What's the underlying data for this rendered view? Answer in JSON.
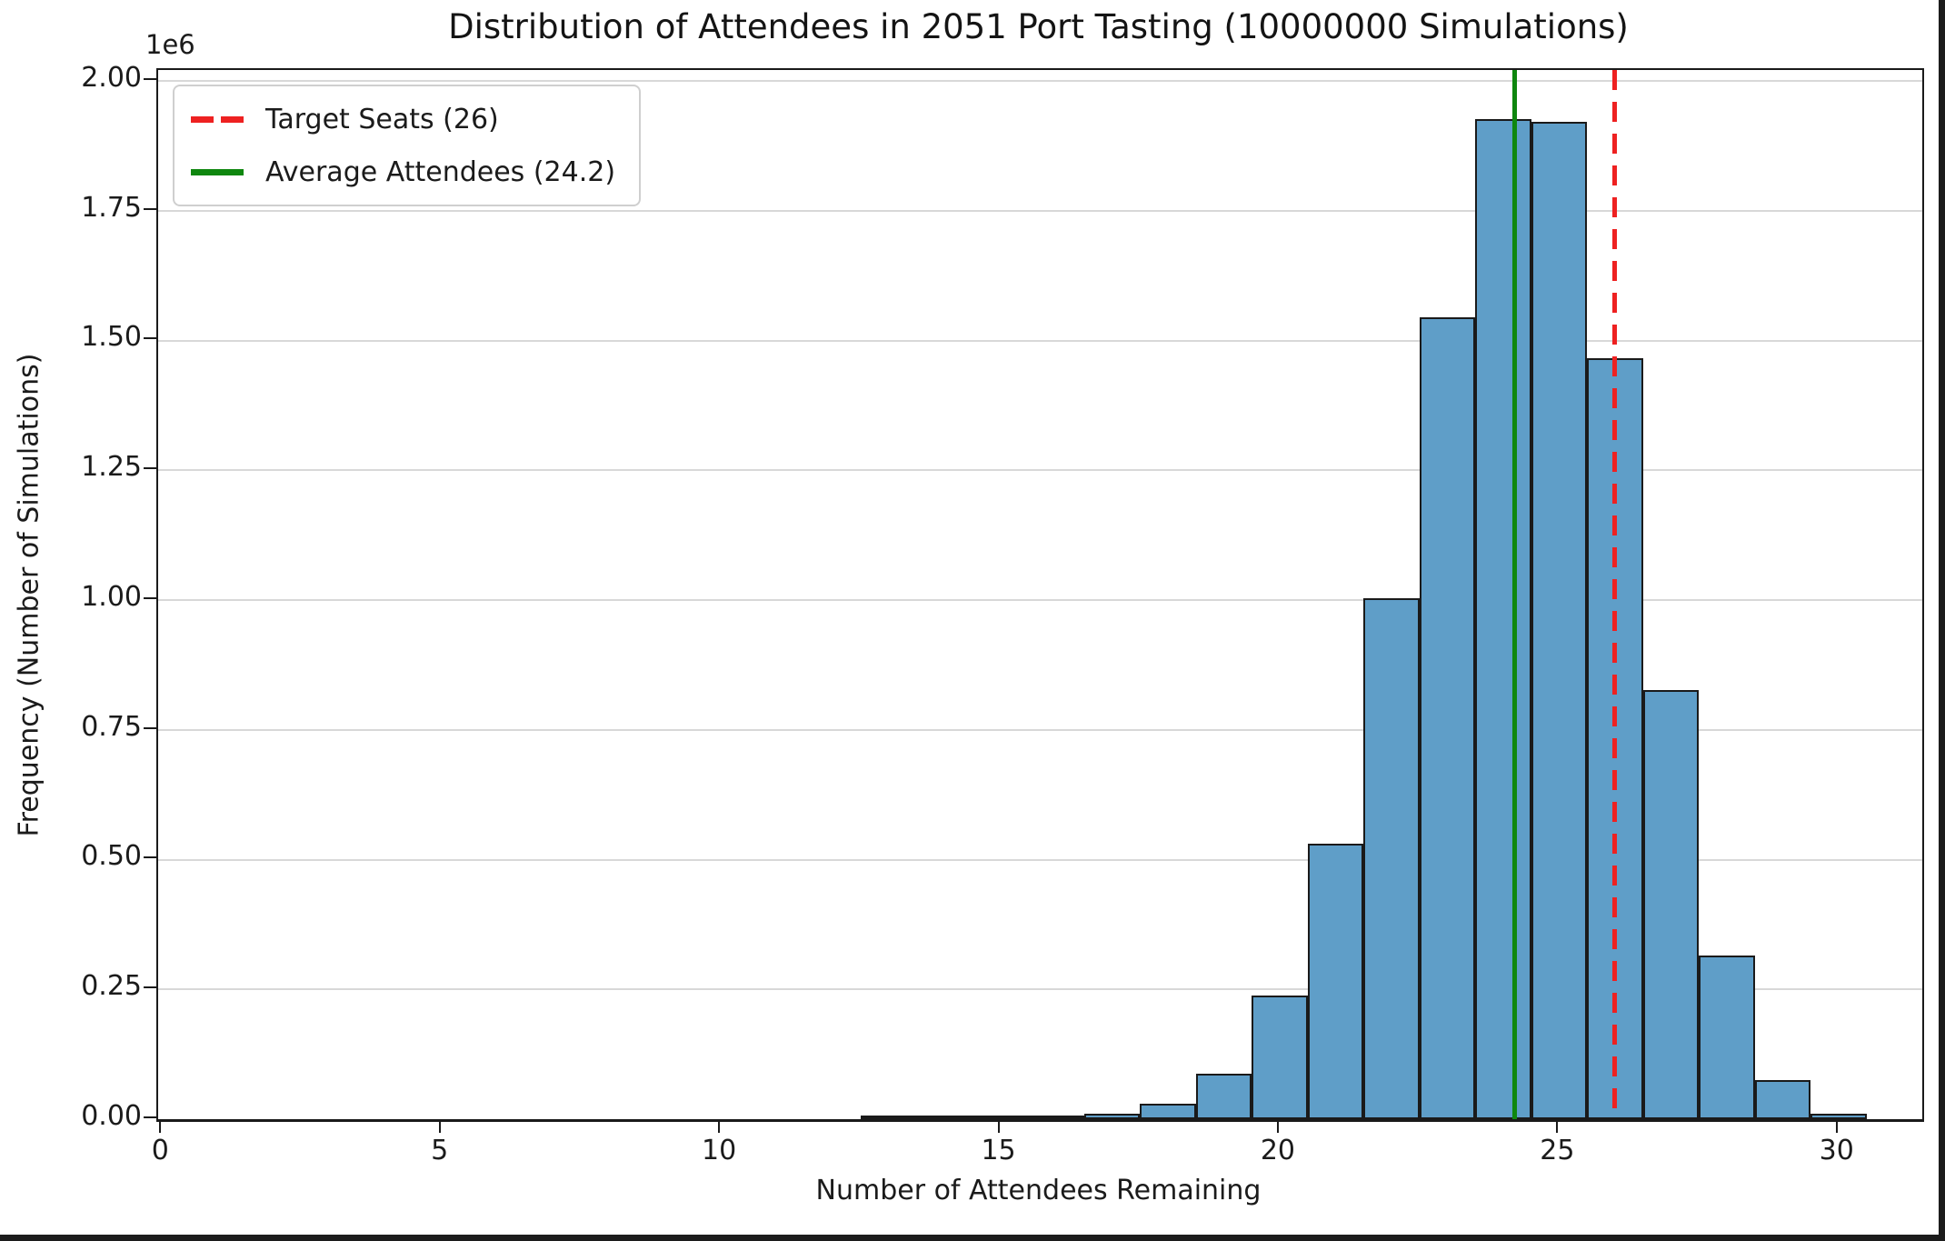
{
  "chart_data": {
    "type": "histogram",
    "title": "Distribution of Attendees in 2051 Port Tasting (10000000 Simulations)",
    "xlabel": "Number of Attendees Remaining",
    "ylabel": "Frequency (Number of Simulations)",
    "y_offset_label": "1e6",
    "bin_centers": [
      13,
      14,
      15,
      16,
      17,
      18,
      19,
      20,
      21,
      22,
      23,
      24,
      25,
      26,
      27,
      28,
      29,
      30
    ],
    "bin_width": 1,
    "counts": [
      400,
      1200,
      2000,
      3600,
      10500,
      30000,
      88000,
      238000,
      531000,
      1003000,
      1545000,
      1926000,
      1921000,
      1466000,
      827000,
      315000,
      75000,
      10500
    ],
    "xlim": [
      -0.07,
      31.5
    ],
    "ylim": [
      0,
      2021000
    ],
    "xticks": [
      {
        "label": "0",
        "value": 0
      },
      {
        "label": "5",
        "value": 5
      },
      {
        "label": "10",
        "value": 10
      },
      {
        "label": "15",
        "value": 15
      },
      {
        "label": "20",
        "value": 20
      },
      {
        "label": "25",
        "value": 25
      },
      {
        "label": "30",
        "value": 30
      }
    ],
    "yticks": [
      {
        "label": "0.00",
        "value": 0
      },
      {
        "label": "0.25",
        "value": 250000
      },
      {
        "label": "0.50",
        "value": 500000
      },
      {
        "label": "0.75",
        "value": 750000
      },
      {
        "label": "1.00",
        "value": 1000000
      },
      {
        "label": "1.25",
        "value": 1250000
      },
      {
        "label": "1.50",
        "value": 1500000
      },
      {
        "label": "1.75",
        "value": 1750000
      },
      {
        "label": "2.00",
        "value": 2000000
      }
    ],
    "grid": "horizontal",
    "legend_position": "upper-left",
    "legend": [
      {
        "label": "Target Seats (26)",
        "color": "#ee2121",
        "style": "dashed"
      },
      {
        "label": "Average Attendees (24.2)",
        "color": "#0f870f",
        "style": "solid"
      }
    ],
    "vlines": [
      {
        "value": 26,
        "color": "#ee2121",
        "style": "dashed"
      },
      {
        "value": 24.2,
        "color": "#0f870f",
        "style": "solid"
      }
    ],
    "bar_fill": "#5f9ec8",
    "bar_edge": "#1a1a1a"
  }
}
